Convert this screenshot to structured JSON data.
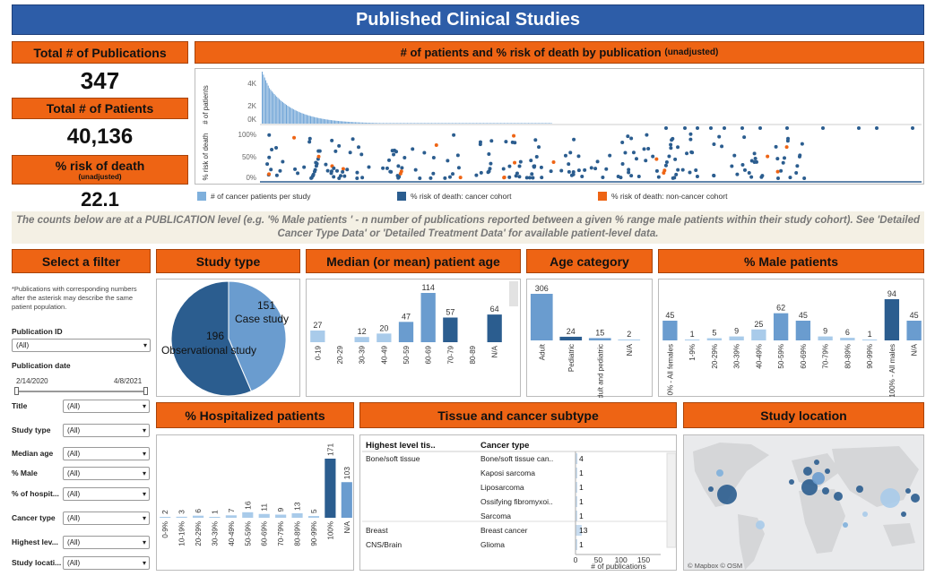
{
  "title": "Published Clinical Studies",
  "kpis": {
    "pub_label": "Total # of Publications",
    "pub_value": "347",
    "pat_label": "Total # of Patients",
    "pat_value": "40,136",
    "risk_label": "% risk of death",
    "risk_sub": "(unadjusted)",
    "risk_value": "22.1"
  },
  "top_chart": {
    "title": "# of patients and % risk of death by publication",
    "title_sub": "(unadjusted)",
    "ylabel_top": "# of patients",
    "ylabel_bottom": "% risk of death",
    "ticks_top": [
      "4K",
      "2K",
      "0K"
    ],
    "ticks_bottom": [
      "100%",
      "50%",
      "0%"
    ],
    "legend": [
      "# of cancer patients per study",
      "% risk of death: cancer cohort",
      "% risk of death: non-cancer cohort"
    ]
  },
  "note": "The counts below are at a PUBLICATION level (e.g. '% Male patients ' - n number of publications reported between a given % range male patients within their study cohort). See 'Detailed Cancer Type Data' or 'Detailed Treatment Data' for available patient-level data.",
  "filters": {
    "header": "Select a filter",
    "note": "*Publications with corresponding numbers after the asterisk may describe the same patient population.",
    "pubid_label": "Publication ID",
    "pubid_value": "(All)",
    "date_label": "Publication date",
    "date_start": "2/14/2020",
    "date_end": "4/8/2021",
    "rows": [
      {
        "label": "Title",
        "value": "(All)"
      },
      {
        "label": "Study type",
        "value": "(All)"
      },
      {
        "label": "Median age",
        "value": "(All)"
      },
      {
        "label": "% Male",
        "value": "(All)"
      },
      {
        "label": "% of hospit...",
        "value": "(All)"
      },
      {
        "label": "Cancer type",
        "value": "(All)"
      },
      {
        "label": "Highest lev...",
        "value": "(All)"
      },
      {
        "label": "Study locati...",
        "value": "(All)"
      }
    ]
  },
  "headers": {
    "study_type": "Study type",
    "median_age": "Median (or mean) patient age",
    "age_cat": "Age category",
    "male": "% Male patients",
    "hosp": "% Hospitalized patients",
    "tissue": "Tissue and cancer subtype",
    "location": "Study location"
  },
  "tissue_table": {
    "col1": "Highest level tis..",
    "col2": "Cancer type",
    "rows": [
      {
        "tissue": "Bone/soft tissue",
        "cancer": "Bone/soft tissue can..",
        "value": 4
      },
      {
        "tissue": "",
        "cancer": "Kaposi sarcoma",
        "value": 1
      },
      {
        "tissue": "",
        "cancer": "Liposarcoma",
        "value": 1
      },
      {
        "tissue": "",
        "cancer": "Ossifying fibromyxoi..",
        "value": 1
      },
      {
        "tissue": "",
        "cancer": "Sarcoma",
        "value": 1
      },
      {
        "tissue": "Breast",
        "cancer": "Breast cancer",
        "value": 13
      },
      {
        "tissue": "CNS/Brain",
        "cancer": "Glioma",
        "value": 1
      }
    ],
    "axis_ticks": [
      "0",
      "50",
      "100",
      "150"
    ],
    "axis_label": "# of publications"
  },
  "map": {
    "credit": "© Mapbox © OSM"
  },
  "colors": {
    "orange": "#ee6414",
    "dark_blue": "#2b5d8f",
    "mid_blue": "#5b8fc4",
    "light_blue": "#7fb0dc",
    "title_blue": "#2d5da8"
  },
  "chart_data": [
    {
      "type": "pie",
      "name": "study_type",
      "slices": [
        {
          "label": "Case study",
          "value": 151,
          "color": "#6a9ccf"
        },
        {
          "label": "Observational study",
          "value": 196,
          "color": "#2b5d8f"
        }
      ]
    },
    {
      "type": "bar",
      "name": "median_age",
      "categories": [
        "0-19",
        "20-29",
        "30-39",
        "40-49",
        "50-59",
        "60-69",
        "70-79",
        "80-89",
        "N/A"
      ],
      "values": [
        27,
        null,
        12,
        20,
        47,
        114,
        57,
        null,
        64
      ],
      "ylim": [
        0,
        114
      ]
    },
    {
      "type": "bar",
      "name": "age_category",
      "categories": [
        "Adult",
        "Pediatric",
        "Adult and pediatric",
        "N/A"
      ],
      "values": [
        306,
        24,
        15,
        2
      ],
      "ylim": [
        0,
        306
      ]
    },
    {
      "type": "bar",
      "name": "male_patients",
      "categories": [
        "0% - All females",
        "1-9%",
        "20-29%",
        "30-39%",
        "40-49%",
        "50-59%",
        "60-69%",
        "70-79%",
        "80-89%",
        "90-99%",
        "100% - All males",
        "N/A"
      ],
      "values": [
        45,
        1,
        5,
        9,
        25,
        62,
        45,
        9,
        6,
        1,
        94,
        45
      ],
      "ylim": [
        0,
        94
      ]
    },
    {
      "type": "bar",
      "name": "hospitalized_patients",
      "categories": [
        "0-9%",
        "10-19%",
        "20-29%",
        "30-39%",
        "40-49%",
        "50-59%",
        "60-69%",
        "70-79%",
        "80-89%",
        "90-99%",
        "100%",
        "N/A"
      ],
      "values": [
        2,
        3,
        6,
        1,
        7,
        16,
        11,
        9,
        13,
        5,
        171,
        103
      ],
      "ylim": [
        0,
        171
      ]
    },
    {
      "type": "bar",
      "name": "tissue_cancer",
      "categories": [
        "Bone/soft tissue can..",
        "Kaposi sarcoma",
        "Liposarcoma",
        "Ossifying fibromyxoi..",
        "Sarcoma",
        "Breast cancer",
        "Glioma"
      ],
      "values": [
        4,
        1,
        1,
        1,
        1,
        13,
        1
      ],
      "xlim": [
        0,
        150
      ]
    }
  ]
}
